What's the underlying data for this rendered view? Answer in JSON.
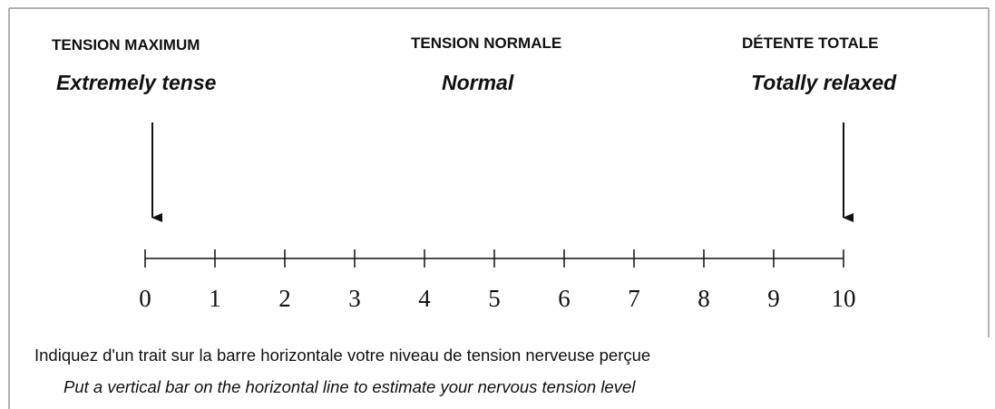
{
  "headings": [
    {
      "french": "TENSION MAXIMUM",
      "english": "Extremely tense"
    },
    {
      "french": "TENSION NORMALE",
      "english": "Normal"
    },
    {
      "french": "DÉTENTE TOTALE",
      "english": "Totally relaxed"
    }
  ],
  "scale": {
    "min": 0,
    "max": 10,
    "ticks": [
      0,
      1,
      2,
      3,
      4,
      5,
      6,
      7,
      8,
      9,
      10
    ]
  },
  "instructions": {
    "french": "Indiquez d'un trait sur la barre horizontale votre niveau de tension nerveuse perçue",
    "english": "Put a vertical bar on the horizontal line to estimate your nervous tension level"
  }
}
